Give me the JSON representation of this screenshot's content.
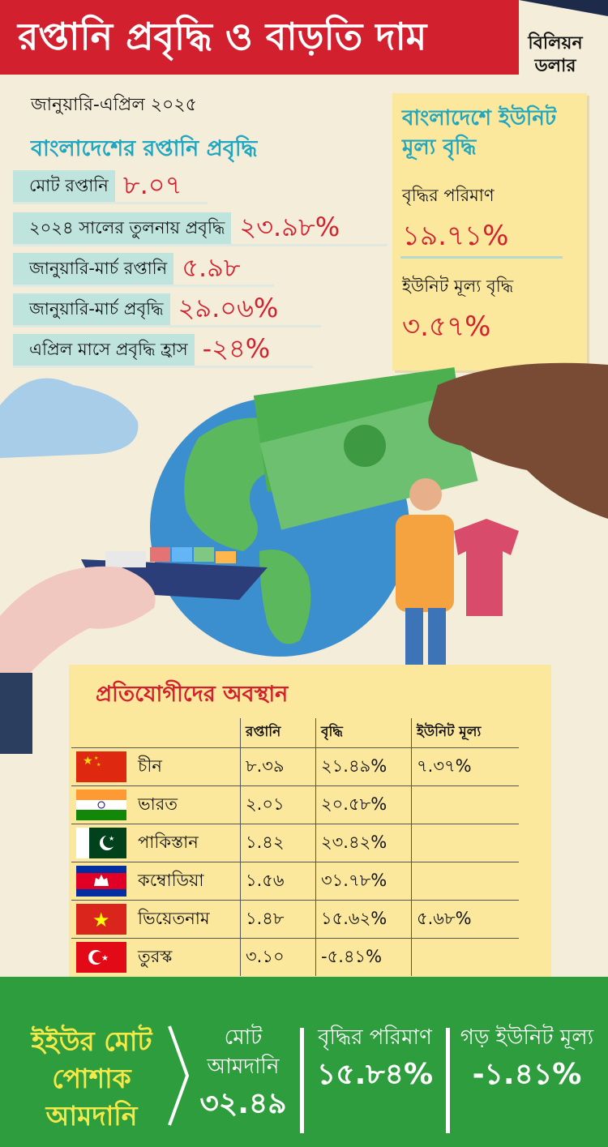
{
  "header": {
    "title": "রপ্তানি প্রবৃদ্ধি ও বাড়তি দাম",
    "unit": "বিলিয়ন ডলার"
  },
  "period": "জানুয়ারি-এপ্রিল ২০২৫",
  "bangladesh_export": {
    "title": "বাংলাদেশের রপ্তানি প্রবৃদ্ধি",
    "rows": [
      {
        "label": "মোট রপ্তানি",
        "value": "৮.০৭"
      },
      {
        "label": "২০২৪ সালের তুলনায় প্রবৃদ্ধি",
        "value": "২৩.৯৮%"
      },
      {
        "label": "জানুয়ারি-মার্চ রপ্তানি",
        "value": "৫.৯৮"
      },
      {
        "label": "জানুয়ারি-মার্চ প্রবৃদ্ধি",
        "value": "২৯.০৬%"
      },
      {
        "label": "এপ্রিল মাসে প্রবৃদ্ধি হ্রাস",
        "value": "-২৪%"
      }
    ]
  },
  "unit_price_box": {
    "title": "বাংলাদেশে ইউনিট মূল্য বৃদ্ধি",
    "growth_amount_label": "বৃদ্ধির পরিমাণ",
    "growth_amount_value": "১৯.৭১%",
    "unit_growth_label": "ইউনিট মূল্য বৃদ্ধি",
    "unit_growth_value": "৩.৫৭%"
  },
  "competitors": {
    "title": "প্রতিযোগীদের অবস্থান",
    "columns": [
      "রপ্তানি",
      "বৃদ্ধি",
      "ইউনিট মূল্য"
    ],
    "rows": [
      {
        "flag": "china-flag",
        "country": "চীন",
        "export": "৮.৩৯",
        "growth": "২১.৪৯%",
        "unit": "৭.৩৭%"
      },
      {
        "flag": "india-flag",
        "country": "ভারত",
        "export": "২.০১",
        "growth": "২০.৫৮%",
        "unit": ""
      },
      {
        "flag": "pakistan-flag",
        "country": "পাকিস্তান",
        "export": "১.৪২",
        "growth": "২৩.৪২%",
        "unit": ""
      },
      {
        "flag": "cambodia-flag",
        "country": "কম্বোডিয়া",
        "export": "১.৫৬",
        "growth": "৩১.৭৮%",
        "unit": ""
      },
      {
        "flag": "vietnam-flag",
        "country": "ভিয়েতনাম",
        "export": "১.৪৮",
        "growth": "১৫.৬২%",
        "unit": "৫.৬৮%"
      },
      {
        "flag": "turkey-flag",
        "country": "তুরস্ক",
        "export": "৩.১০",
        "growth": "-৫.৪১%",
        "unit": ""
      }
    ]
  },
  "eu_imports": {
    "label": "ইইউর মোট পোশাক আমদানি",
    "items": [
      {
        "heading": "মোট আমদানি",
        "value": "৩২.৪৯"
      },
      {
        "heading": "বৃদ্ধির পরিমাণ",
        "value": "১৫.৮৪%"
      },
      {
        "heading": "গড় ইউনিট মূল্য",
        "value": "-১.৪১%"
      }
    ]
  },
  "colors": {
    "banner_red": "#d2202f",
    "accent_teal": "#1fa6c0",
    "panel_yellow": "#fbe89c",
    "footer_green": "#2e9d3d",
    "eu_label_yellow": "#f5e94a"
  }
}
